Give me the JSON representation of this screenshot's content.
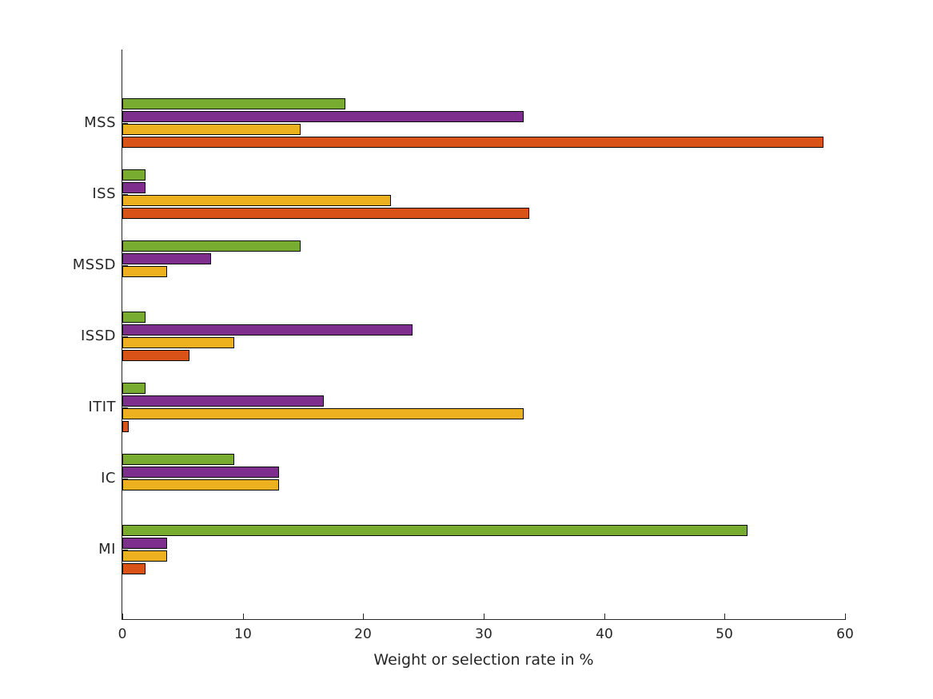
{
  "figure": {
    "background": "#FFFFFF",
    "axis_color": "#262626",
    "text_color": "#262626"
  },
  "chart_data": {
    "type": "bar",
    "orientation": "horizontal",
    "grouped": true,
    "title": "",
    "xlabel": "Weight or selection rate in %",
    "ylabel": "",
    "xlim": [
      0,
      60
    ],
    "xticks": [
      0,
      10,
      20,
      30,
      40,
      50,
      60
    ],
    "grid": false,
    "legend": null,
    "bar_edge_color": "#0A0A0A",
    "categories": [
      "MSS",
      "ISS",
      "MSSD",
      "ISSD",
      "ITIT",
      "IC",
      "MI"
    ],
    "series": [
      {
        "name": "green",
        "color": "#77AC30",
        "values": [
          18.5,
          1.9,
          14.8,
          1.9,
          1.9,
          9.3,
          51.9
        ]
      },
      {
        "name": "purple",
        "color": "#7E2F8E",
        "values": [
          33.3,
          1.9,
          7.4,
          24.1,
          16.7,
          13.0,
          3.7
        ]
      },
      {
        "name": "yellow",
        "color": "#EDB120",
        "values": [
          14.8,
          22.3,
          3.7,
          9.3,
          33.3,
          13.0,
          3.7
        ]
      },
      {
        "name": "orange",
        "color": "#D95319",
        "values": [
          58.2,
          33.8,
          0,
          5.6,
          0.5,
          0,
          1.9
        ]
      }
    ]
  }
}
